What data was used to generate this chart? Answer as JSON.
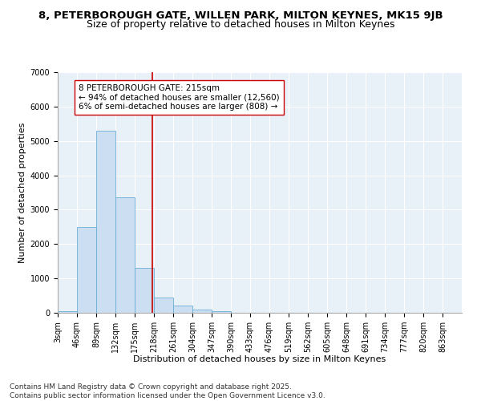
{
  "title_line1": "8, PETERBOROUGH GATE, WILLEN PARK, MILTON KEYNES, MK15 9JB",
  "title_line2": "Size of property relative to detached houses in Milton Keynes",
  "xlabel": "Distribution of detached houses by size in Milton Keynes",
  "ylabel": "Number of detached properties",
  "bin_labels": [
    "3sqm",
    "46sqm",
    "89sqm",
    "132sqm",
    "175sqm",
    "218sqm",
    "261sqm",
    "304sqm",
    "347sqm",
    "390sqm",
    "433sqm",
    "476sqm",
    "519sqm",
    "562sqm",
    "605sqm",
    "648sqm",
    "691sqm",
    "734sqm",
    "777sqm",
    "820sqm",
    "863sqm"
  ],
  "bin_edges": [
    3,
    46,
    89,
    132,
    175,
    218,
    261,
    304,
    347,
    390,
    433,
    476,
    519,
    562,
    605,
    648,
    691,
    734,
    777,
    820,
    863
  ],
  "bar_heights": [
    50,
    2500,
    5300,
    3350,
    1300,
    450,
    200,
    100,
    50,
    5,
    2,
    1,
    0,
    0,
    0,
    0,
    0,
    0,
    0,
    0
  ],
  "bar_color": "#ccdff2",
  "bar_edge_color": "#6aaed6",
  "property_size": 215,
  "vline_color": "#cc0000",
  "annotation_text": "8 PETERBOROUGH GATE: 215sqm\n← 94% of detached houses are smaller (12,560)\n6% of semi-detached houses are larger (808) →",
  "annotation_box_color": "#ffffff",
  "annotation_box_edge": "#cc0000",
  "ylim": [
    0,
    7000
  ],
  "yticks": [
    0,
    1000,
    2000,
    3000,
    4000,
    5000,
    6000,
    7000
  ],
  "bg_color": "#e8f0f8",
  "footer_line1": "Contains HM Land Registry data © Crown copyright and database right 2025.",
  "footer_line2": "Contains public sector information licensed under the Open Government Licence v3.0.",
  "title_fontsize": 9.5,
  "subtitle_fontsize": 9,
  "axis_label_fontsize": 8,
  "tick_fontsize": 7,
  "annotation_fontsize": 7.5,
  "footer_fontsize": 6.5
}
